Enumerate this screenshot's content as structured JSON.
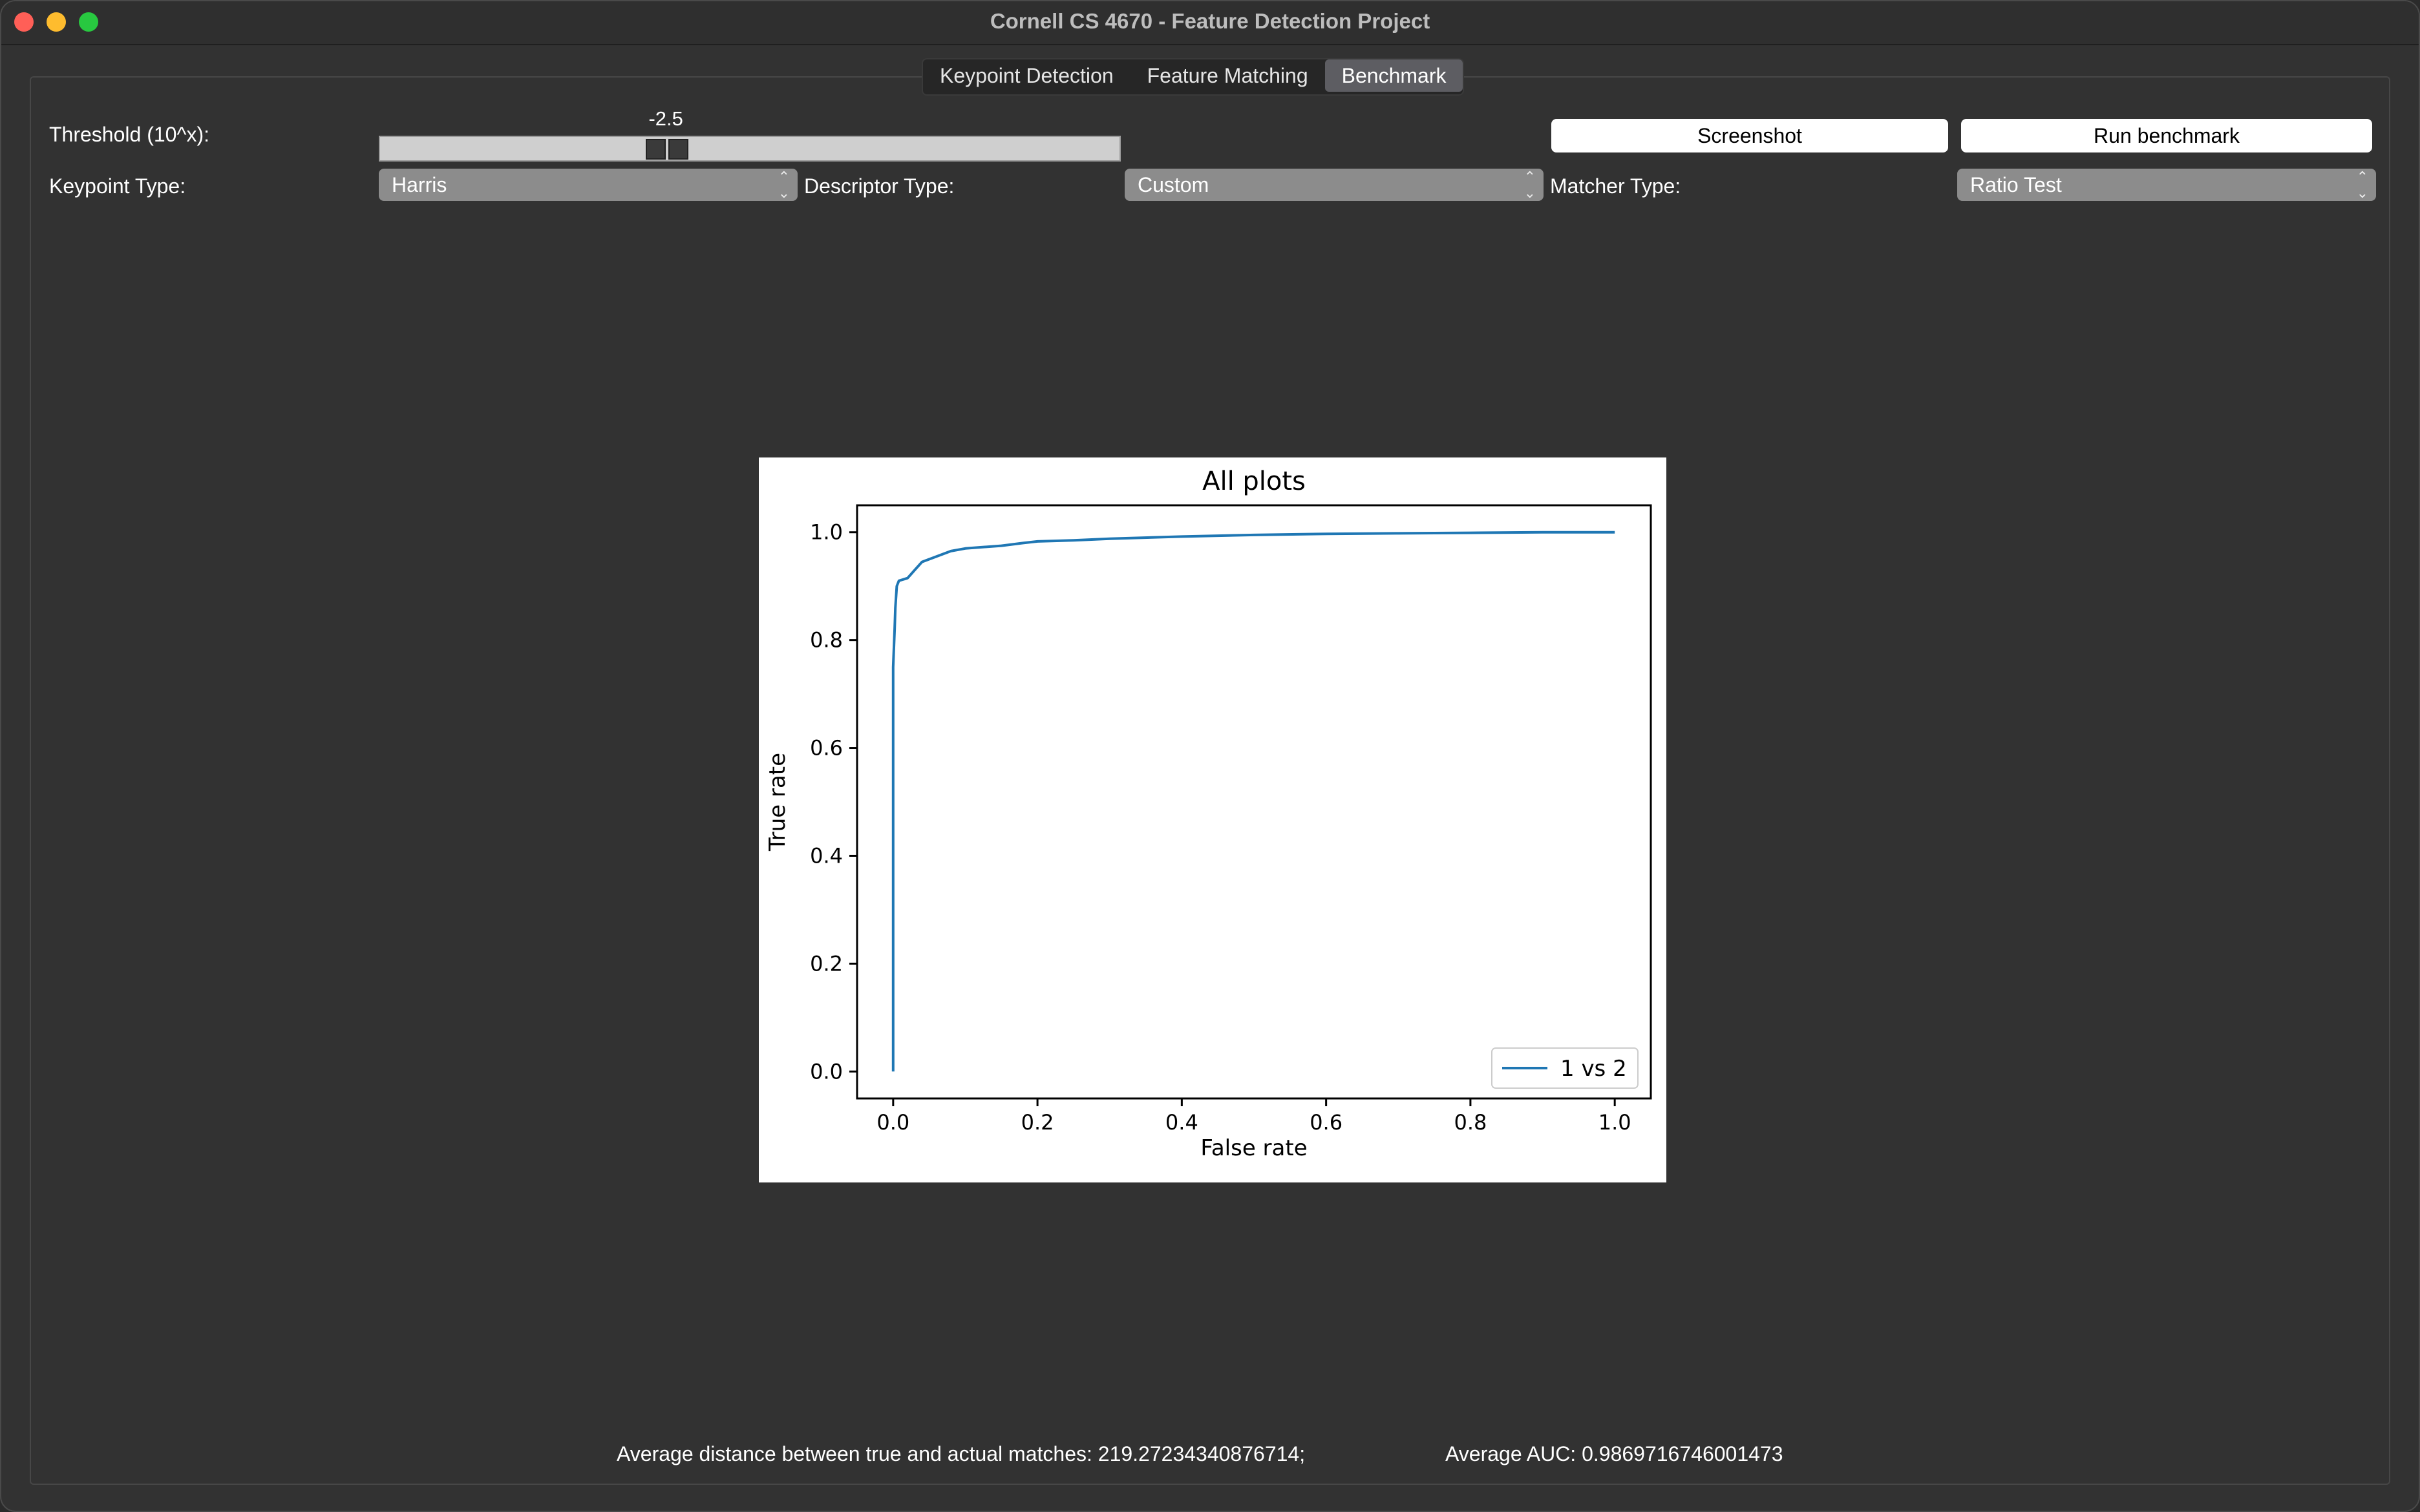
{
  "window": {
    "title": "Cornell CS 4670 - Feature Detection Project"
  },
  "tabs": [
    {
      "label": "Keypoint Detection",
      "active": false
    },
    {
      "label": "Feature Matching",
      "active": false
    },
    {
      "label": "Benchmark",
      "active": true
    }
  ],
  "controls": {
    "threshold_label": "Threshold (10^x):",
    "threshold_value": "-2.5",
    "threshold_fraction": 0.38,
    "screenshot_label": "Screenshot",
    "run_benchmark_label": "Run benchmark",
    "keypoint_type_label": "Keypoint Type:",
    "keypoint_type_value": "Harris",
    "descriptor_type_label": "Descriptor Type:",
    "descriptor_type_value": "Custom",
    "matcher_type_label": "Matcher Type:",
    "matcher_type_value": "Ratio Test"
  },
  "chart_data": {
    "type": "line",
    "title": "All plots",
    "xlabel": "False rate",
    "ylabel": "True rate",
    "xlim": [
      -0.05,
      1.05
    ],
    "ylim": [
      -0.05,
      1.05
    ],
    "xticks": [
      "0.0",
      "0.2",
      "0.4",
      "0.6",
      "0.8",
      "1.0"
    ],
    "yticks": [
      "0.0",
      "0.2",
      "0.4",
      "0.6",
      "0.8",
      "1.0"
    ],
    "grid": false,
    "legend_position": "lower-right",
    "series": [
      {
        "name": "1 vs 2",
        "color": "#1f77b4",
        "x": [
          0.0,
          0.0,
          0.002,
          0.003,
          0.005,
          0.008,
          0.02,
          0.03,
          0.04,
          0.06,
          0.08,
          0.1,
          0.15,
          0.18,
          0.2,
          0.25,
          0.3,
          0.4,
          0.5,
          0.6,
          0.7,
          0.8,
          0.9,
          1.0
        ],
        "y": [
          0.0,
          0.75,
          0.82,
          0.86,
          0.9,
          0.91,
          0.915,
          0.93,
          0.945,
          0.955,
          0.965,
          0.97,
          0.975,
          0.98,
          0.983,
          0.985,
          0.988,
          0.992,
          0.995,
          0.997,
          0.998,
          0.999,
          1.0,
          1.0
        ]
      }
    ]
  },
  "footer": {
    "avg_distance": "Average distance between true and actual matches: 219.27234340876714;",
    "avg_auc": "Average AUC: 0.9869716746001473"
  }
}
